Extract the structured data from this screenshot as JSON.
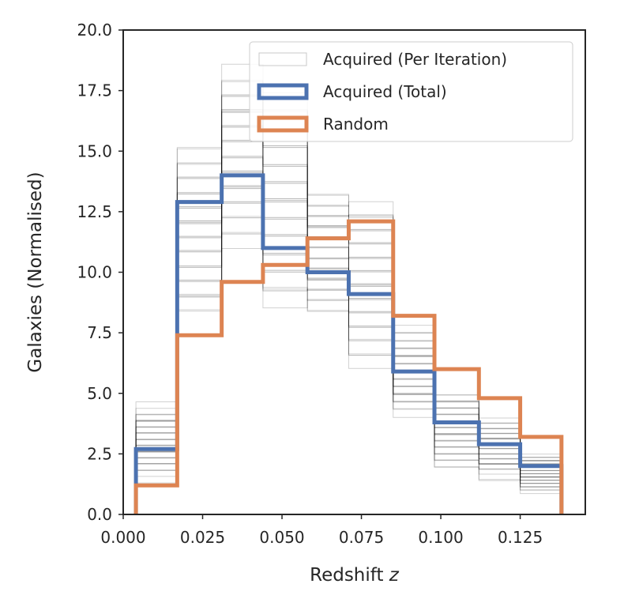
{
  "chart_data": {
    "type": "histogram",
    "title": "",
    "xlabel": "Redshift",
    "xlabel_var": "z",
    "ylabel": "Galaxies (Normalised)",
    "xlim": [
      0.0,
      0.1455
    ],
    "ylim": [
      0.0,
      20.0
    ],
    "x_ticks": [
      0.0,
      0.025,
      0.05,
      0.075,
      0.1,
      0.125
    ],
    "x_tick_labels": [
      "0.000",
      "0.025",
      "0.050",
      "0.075",
      "0.100",
      "0.125"
    ],
    "y_ticks": [
      0.0,
      2.5,
      5.0,
      7.5,
      10.0,
      12.5,
      15.0,
      17.5,
      20.0
    ],
    "y_tick_labels": [
      "0.0",
      "2.5",
      "5.0",
      "7.5",
      "10.0",
      "12.5",
      "15.0",
      "17.5",
      "20.0"
    ],
    "bin_edges": [
      0.004,
      0.017,
      0.031,
      0.044,
      0.058,
      0.071,
      0.085,
      0.098,
      0.112,
      0.125,
      0.138
    ],
    "grid": false,
    "legend_position": "top-right",
    "legend": [
      {
        "label": "Acquired (Per Iteration)",
        "color": "#c8c8c8",
        "style": "thin"
      },
      {
        "label": "Acquired (Total)",
        "color": "#4c72b0",
        "style": "thick"
      },
      {
        "label": "Random",
        "color": "#dd8452",
        "style": "thick"
      }
    ],
    "series": [
      {
        "name": "Acquired (Total)",
        "color": "#4c72b0",
        "values": [
          2.7,
          12.9,
          14.0,
          11.0,
          10.0,
          9.1,
          5.9,
          3.8,
          2.9,
          2.0
        ]
      },
      {
        "name": "Random",
        "color": "#dd8452",
        "values": [
          1.2,
          7.4,
          9.6,
          10.3,
          11.4,
          12.1,
          8.2,
          6.0,
          4.8,
          3.2
        ]
      }
    ],
    "per_iteration": {
      "name": "Acquired (Per Iteration)",
      "color": "#000000",
      "ranges": [
        {
          "min": 1.3,
          "max": 4.7
        },
        {
          "min": 7.6,
          "max": 15.7
        },
        {
          "min": 10.6,
          "max": 19.0
        },
        {
          "min": 7.9,
          "max": 17.7
        },
        {
          "min": 7.9,
          "max": 13.7
        },
        {
          "min": 5.8,
          "max": 13.4
        },
        {
          "min": 3.8,
          "max": 8.0
        },
        {
          "min": 1.7,
          "max": 5.3
        },
        {
          "min": 1.4,
          "max": 4.2
        },
        {
          "min": 0.8,
          "max": 2.6
        }
      ]
    }
  }
}
